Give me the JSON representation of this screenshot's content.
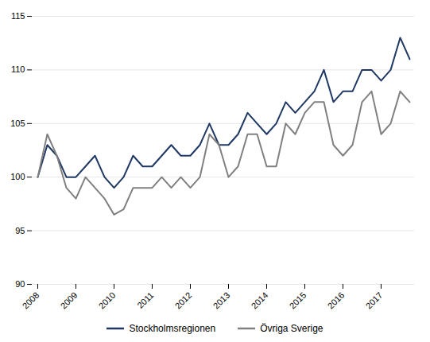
{
  "chart_data": {
    "type": "line",
    "categories": [
      "2008",
      null,
      null,
      null,
      "2009",
      null,
      null,
      null,
      "2010",
      null,
      null,
      null,
      "2011",
      null,
      null,
      null,
      "2012",
      null,
      null,
      null,
      "2013",
      null,
      null,
      null,
      "2014",
      null,
      null,
      null,
      "2015",
      null,
      null,
      null,
      "2016",
      null,
      null,
      null,
      "2017",
      null,
      null,
      null
    ],
    "series": [
      {
        "name": "Stockholmsregionen",
        "color": "#1F3864",
        "values": [
          100,
          103,
          102,
          100,
          100,
          101,
          102,
          100,
          99,
          100,
          102,
          101,
          101,
          102,
          103,
          102,
          102,
          103,
          105,
          103,
          103,
          104,
          106,
          105,
          104,
          105,
          107,
          106,
          107,
          108,
          110,
          107,
          108,
          108,
          110,
          110,
          109,
          110,
          113,
          111
        ]
      },
      {
        "name": "Övriga Sverige",
        "color": "#808080",
        "values": [
          100,
          104,
          102,
          99,
          98,
          100,
          99,
          98,
          96.5,
          97,
          99,
          99,
          99,
          100,
          99,
          100,
          99,
          100,
          104,
          103,
          100,
          101,
          104,
          104,
          101,
          101,
          105,
          104,
          106,
          107,
          107,
          103,
          102,
          103,
          107,
          108,
          104,
          105,
          108,
          107
        ]
      }
    ],
    "ylim": [
      90,
      115
    ],
    "yticks": [
      90,
      95,
      100,
      105,
      110,
      115
    ],
    "grid": true,
    "legend": "bottom"
  }
}
